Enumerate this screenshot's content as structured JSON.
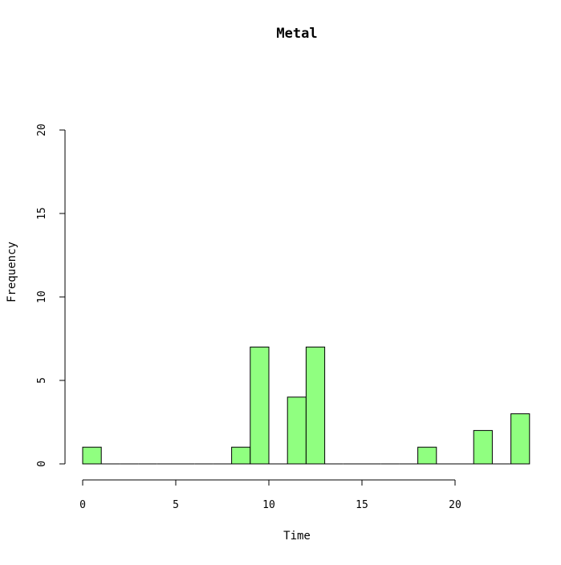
{
  "chart_data": {
    "type": "bar",
    "title": "Metal",
    "xlabel": "Time",
    "ylabel": "Frequency",
    "xlim": [
      0,
      24
    ],
    "ylim": [
      0,
      20
    ],
    "x_ticks": [
      "0",
      "5",
      "10",
      "15",
      "20"
    ],
    "y_ticks": [
      "0",
      "5",
      "10",
      "15",
      "20"
    ],
    "bin_width": 1,
    "bins": [
      {
        "start": 0,
        "end": 1,
        "value": 1
      },
      {
        "start": 8,
        "end": 9,
        "value": 1
      },
      {
        "start": 9,
        "end": 10,
        "value": 7
      },
      {
        "start": 11,
        "end": 12,
        "value": 4
      },
      {
        "start": 12,
        "end": 13,
        "value": 7
      },
      {
        "start": 18,
        "end": 19,
        "value": 1
      },
      {
        "start": 21,
        "end": 22,
        "value": 2
      },
      {
        "start": 23,
        "end": 24,
        "value": 3
      }
    ],
    "bar_color": "#90ff80",
    "bar_stroke": "#000000",
    "grid": false,
    "legend": "none"
  }
}
